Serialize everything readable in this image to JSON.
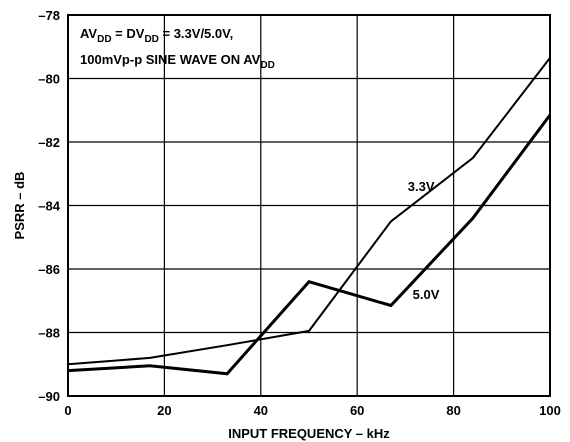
{
  "chart_data": {
    "type": "line",
    "xlabel": "INPUT FREQUENCY – kHz",
    "ylabel": "PSRR – dB",
    "xlim": [
      0,
      100
    ],
    "ylim": [
      -90,
      -78
    ],
    "xticks": [
      0,
      20,
      40,
      60,
      80,
      100
    ],
    "yticks": [
      -90,
      -88,
      -86,
      -84,
      -82,
      -80,
      -78
    ],
    "xtick_labels": [
      "0",
      "20",
      "40",
      "60",
      "80",
      "100"
    ],
    "ytick_labels": [
      "–90",
      "–88",
      "–86",
      "–84",
      "–82",
      "–80",
      "–78"
    ],
    "grid": true,
    "annotation": {
      "line1": {
        "prefix": "AV",
        "sub1": "DD",
        "mid": " = DV",
        "sub2": "DD",
        "suffix": " = 3.3V/5.0V,"
      },
      "line2": {
        "prefix": "100mVp-p SINE WAVE ON AV",
        "sub": "DD"
      }
    },
    "series": [
      {
        "name": "3.3V",
        "stroke_width": 2,
        "x": [
          0,
          17,
          33,
          50,
          67,
          84,
          100
        ],
        "y": [
          -89.0,
          -88.8,
          -88.4,
          -87.95,
          -84.5,
          -82.5,
          -79.35
        ]
      },
      {
        "name": "5.0V",
        "stroke_width": 3,
        "x": [
          0,
          17,
          33,
          50,
          67,
          84,
          100
        ],
        "y": [
          -89.2,
          -89.05,
          -89.3,
          -86.4,
          -87.15,
          -84.4,
          -81.15
        ]
      }
    ],
    "series_label_positions_data": [
      {
        "x": 70.5,
        "y": -83.55
      },
      {
        "x": 71.5,
        "y": -86.95
      }
    ]
  }
}
